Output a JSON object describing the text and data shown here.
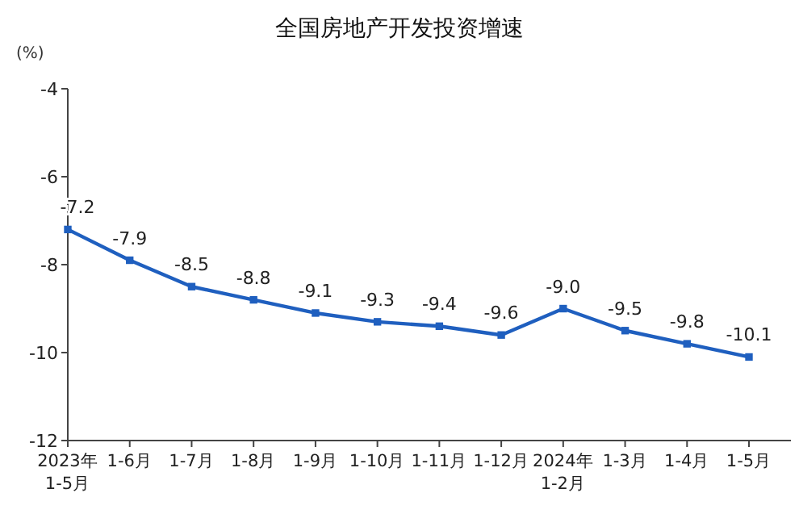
{
  "chart_data": {
    "type": "line",
    "title": "全国房地产开发投资增速",
    "ylabel": "(%)",
    "categories": [
      "2023年\n1-5月",
      "1-6月",
      "1-7月",
      "1-8月",
      "1-9月",
      "1-10月",
      "1-11月",
      "1-12月",
      "2024年\n1-2月",
      "1-3月",
      "1-4月",
      "1-5月"
    ],
    "series": [
      {
        "color": "#1f5fbf",
        "values": [
          -7.2,
          -7.9,
          -8.5,
          -8.8,
          -9.1,
          -9.3,
          -9.4,
          -9.6,
          -9.0,
          -9.5,
          -9.8,
          -10.1
        ],
        "value_labels": [
          "-7.2",
          "-7.9",
          "-8.5",
          "-8.8",
          "-9.1",
          "-9.3",
          "-9.4",
          "-9.6",
          "-9.0",
          "-9.5",
          "-9.8",
          "-10.1"
        ]
      }
    ],
    "ylim": [
      -12,
      -4
    ],
    "yticks": [
      -4,
      -6,
      -8,
      -10,
      -12
    ],
    "marker": "square",
    "grid": false
  }
}
